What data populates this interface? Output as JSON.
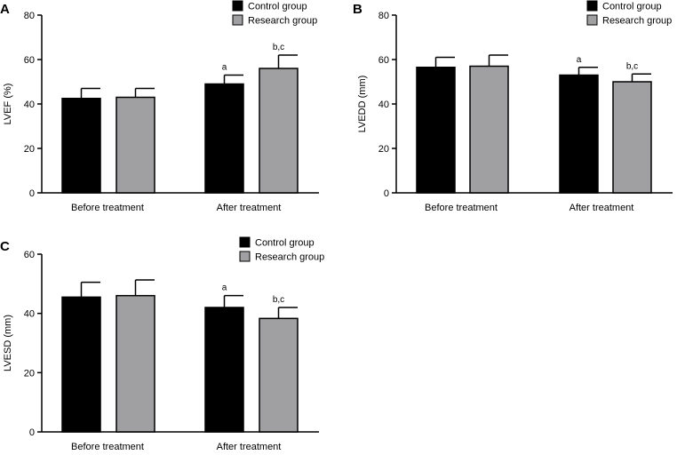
{
  "figure": {
    "legend": {
      "control": "Control group",
      "research": "Research group"
    },
    "colors": {
      "control": "#000000",
      "research": "#a0a0a2"
    }
  },
  "chart_data": [
    {
      "panel": "A",
      "type": "bar",
      "ylabel": "LVEF (%)",
      "xlabel": "",
      "ylim": [
        0,
        80
      ],
      "yticks": [
        "0",
        "20",
        "40",
        "60",
        "80"
      ],
      "categories": [
        "Before treatment",
        "After treatment"
      ],
      "series": [
        {
          "name": "Control group",
          "values": [
            42.5,
            49
          ],
          "errors": [
            4.5,
            4
          ],
          "annotations": [
            "",
            "a"
          ]
        },
        {
          "name": "Research group",
          "values": [
            43,
            56
          ],
          "errors": [
            4,
            6
          ],
          "annotations": [
            "",
            "b,c"
          ]
        }
      ],
      "legend_position": "top-right"
    },
    {
      "panel": "B",
      "type": "bar",
      "ylabel": "LVEDD (mm)",
      "xlabel": "",
      "ylim": [
        0,
        80
      ],
      "yticks": [
        "0",
        "20",
        "40",
        "60",
        "80"
      ],
      "categories": [
        "Before treatment",
        "After treatment"
      ],
      "series": [
        {
          "name": "Control group",
          "values": [
            56.5,
            53
          ],
          "errors": [
            4.5,
            3.5
          ],
          "annotations": [
            "",
            "a"
          ]
        },
        {
          "name": "Research group",
          "values": [
            57,
            50
          ],
          "errors": [
            5,
            3.5
          ],
          "annotations": [
            "",
            "b,c"
          ]
        }
      ],
      "legend_position": "top-right"
    },
    {
      "panel": "C",
      "type": "bar",
      "ylabel": "LVESD (mm)",
      "xlabel": "",
      "ylim": [
        0,
        60
      ],
      "yticks": [
        "0",
        "20",
        "40",
        "60"
      ],
      "categories": [
        "Before treatment",
        "After treatment"
      ],
      "series": [
        {
          "name": "Control group",
          "values": [
            45.5,
            42
          ],
          "errors": [
            5,
            4
          ],
          "annotations": [
            "",
            "a"
          ]
        },
        {
          "name": "Research group",
          "values": [
            46,
            38.3
          ],
          "errors": [
            5.3,
            3.7
          ],
          "annotations": [
            "",
            "b,c"
          ]
        }
      ],
      "legend_position": "top-right"
    }
  ]
}
